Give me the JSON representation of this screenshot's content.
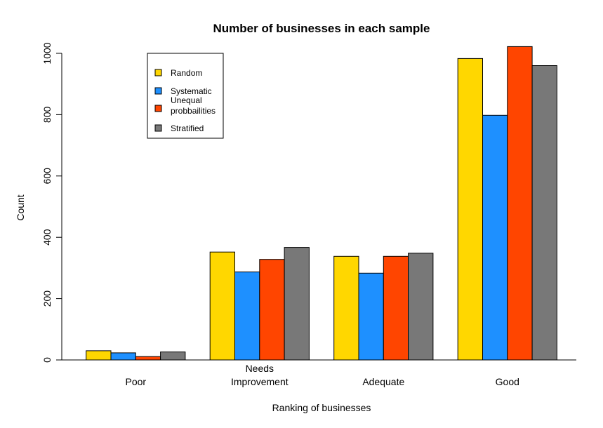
{
  "chart_data": {
    "type": "bar",
    "title": "Number of businesses in each sample",
    "xlabel": "Ranking of businesses",
    "ylabel": "Count",
    "categories": [
      [
        "Poor"
      ],
      [
        "Needs",
        "Improvement"
      ],
      [
        "Adequate"
      ],
      [
        "Good"
      ]
    ],
    "series": [
      {
        "name": "Random",
        "color": "#FFD700",
        "values": [
          30,
          352,
          338,
          983
        ]
      },
      {
        "name": "Systematic",
        "color": "#1E90FF",
        "values": [
          23,
          287,
          283,
          798
        ]
      },
      {
        "name": "Unequal probbailities",
        "legend_lines": [
          "Unequal",
          "probbailities"
        ],
        "color": "#FF4500",
        "values": [
          11,
          328,
          338,
          1022
        ]
      },
      {
        "name": "Stratified",
        "color": "#787878",
        "values": [
          26,
          367,
          348,
          960
        ]
      }
    ],
    "ylim": [
      0,
      1050
    ],
    "yticks": [
      0,
      200,
      400,
      600,
      800,
      1000
    ],
    "grid": false,
    "legend_position": "top-left"
  }
}
